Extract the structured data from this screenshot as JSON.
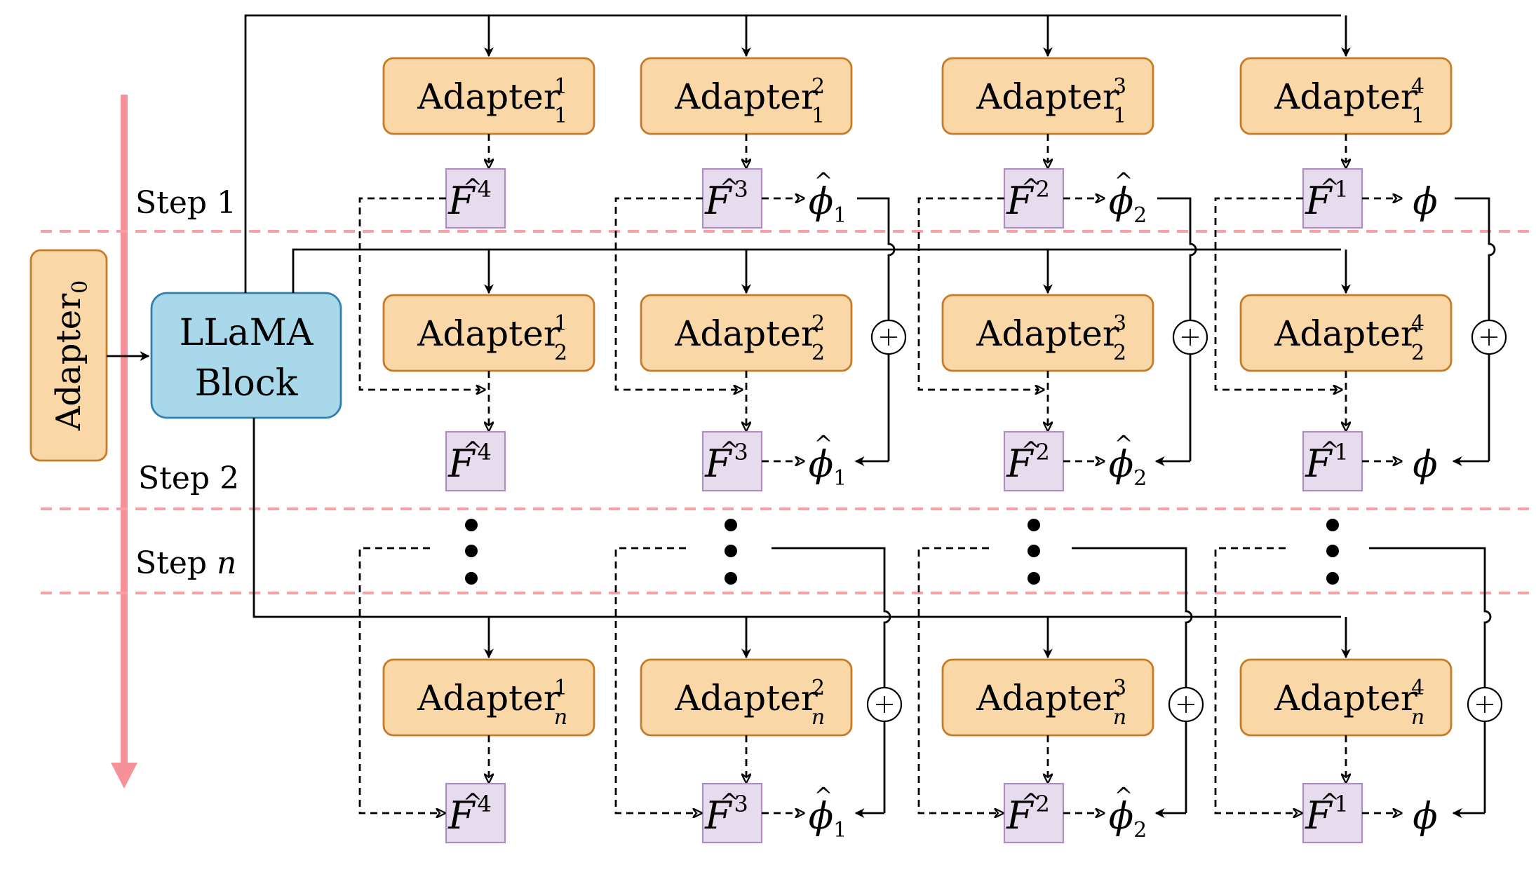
{
  "labels": {
    "adapter_base": "Adapter",
    "adapter0": "Adapter",
    "adapter0_sub": "0",
    "llama_line1": "LLaMA",
    "llama_line2": "Block",
    "step1": "Step 1",
    "step2": "Step 2",
    "stepn_word": "Step",
    "stepn_var": "n",
    "f_letter": "F",
    "hat": "^",
    "phi": "ϕ",
    "plus": "+"
  },
  "columns": [
    {
      "sup": "1",
      "f_sup": "4",
      "phi_sub": ""
    },
    {
      "sup": "2",
      "f_sup": "3",
      "phi_sub": "1"
    },
    {
      "sup": "3",
      "f_sup": "2",
      "phi_sub": "2"
    },
    {
      "sup": "4",
      "f_sup": "1",
      "phi_sub": ""
    }
  ],
  "rows": [
    {
      "sub": "1"
    },
    {
      "sub": "2"
    },
    {
      "sub": "n"
    }
  ],
  "colors": {
    "adapter_fill": "#f9d7a6",
    "adapter_stroke": "#c87b26",
    "f_fill": "#e6dced",
    "f_stroke": "#ae8cc4",
    "llama_fill": "#a8d8ea",
    "llama_stroke": "#2f7fb0",
    "step_arrow": "#f6919a",
    "separator": "#f6a1a6"
  }
}
